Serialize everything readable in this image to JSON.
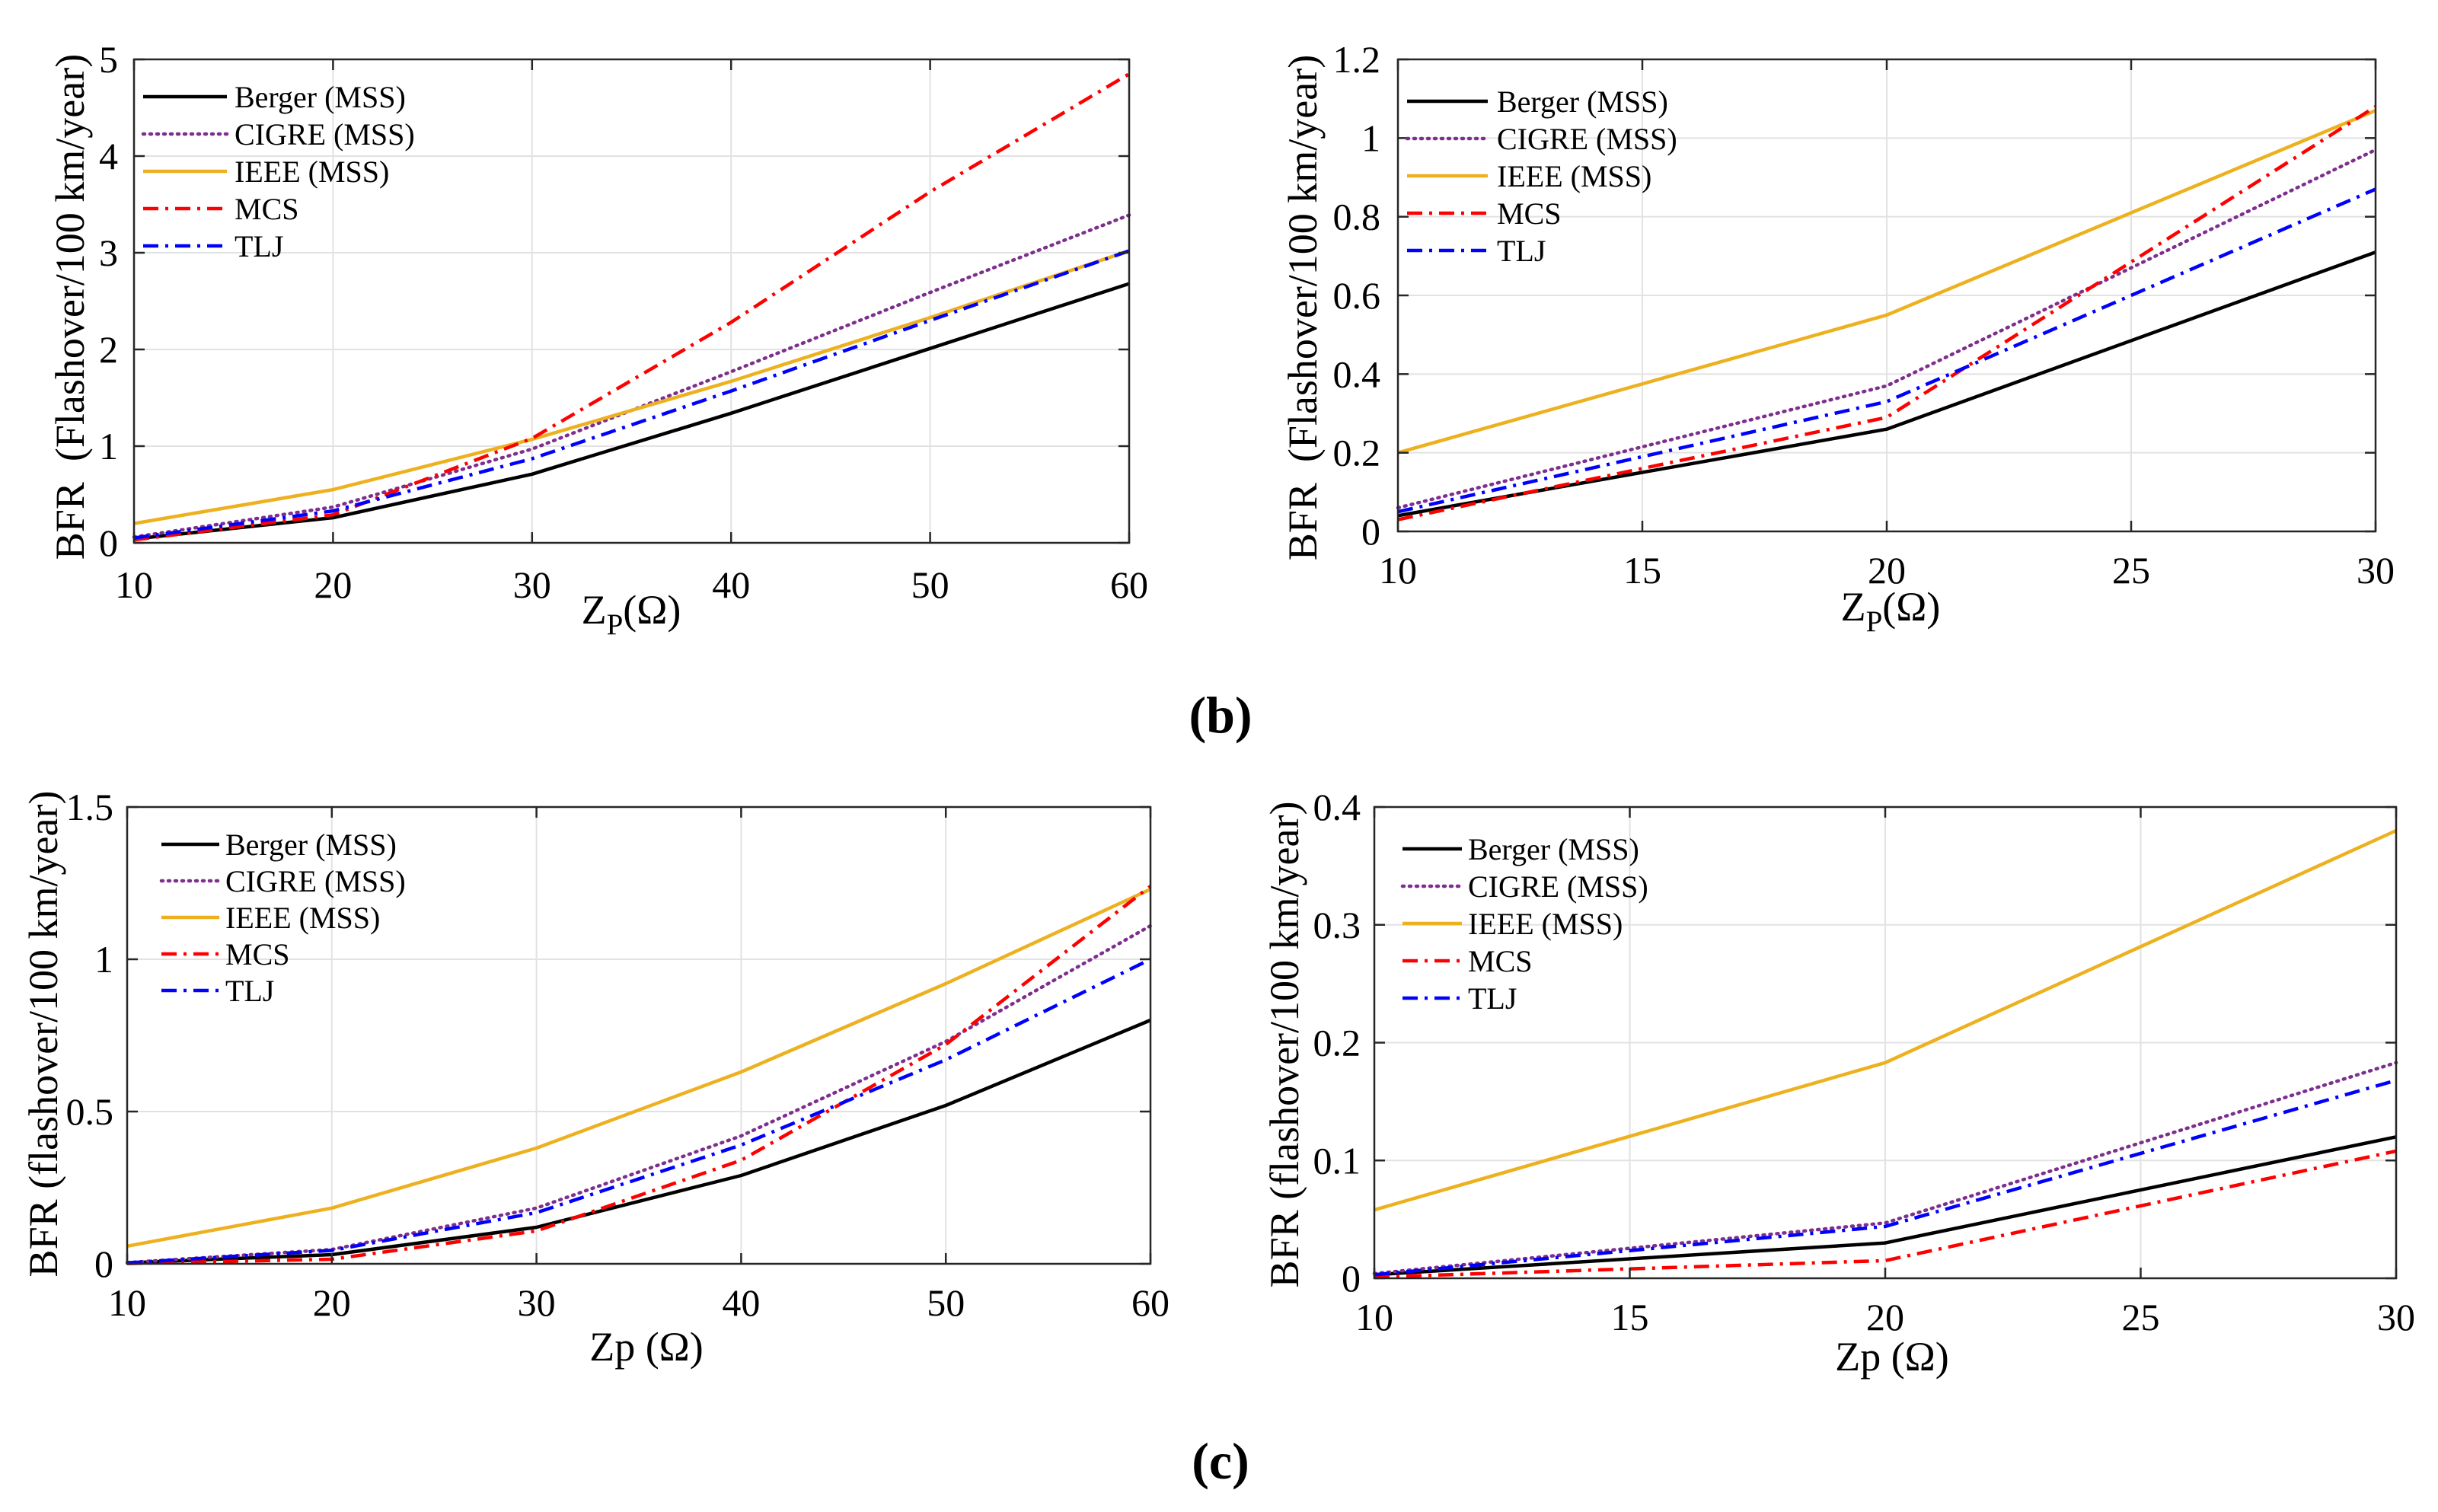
{
  "figure": {
    "label_b": "(b)",
    "label_c": "(c)"
  },
  "chart_data": [
    {
      "panel": "b-left",
      "type": "line",
      "title": "",
      "xlabel": {
        "main": "Z",
        "sub": "P",
        "rest": "(Ω)"
      },
      "ylabel": "BFR  (Flashover/100 km/year)",
      "xlim": [
        10,
        60
      ],
      "ylim": [
        0,
        5
      ],
      "x": [
        10,
        20,
        30,
        40,
        50,
        60
      ],
      "xticks": [
        10,
        20,
        30,
        40,
        50,
        60
      ],
      "xtick_labels": [
        "10",
        "20",
        "30",
        "40",
        "50",
        "60"
      ],
      "yticks": [
        0,
        1,
        2,
        3,
        4,
        5
      ],
      "ytick_labels": [
        "0",
        "1",
        "2",
        "3",
        "4",
        "5"
      ],
      "grid": true,
      "legend_position": "top-left",
      "series": [
        {
          "name": "Berger (MSS)",
          "color": "#000000",
          "style": "solid",
          "values": [
            0.04,
            0.26,
            0.71,
            1.34,
            2.01,
            2.68
          ]
        },
        {
          "name": "CIGRE (MSS)",
          "color": "#7E2F8E",
          "style": "dotted",
          "values": [
            0.06,
            0.37,
            0.97,
            1.77,
            2.59,
            3.39
          ]
        },
        {
          "name": "IEEE (MSS)",
          "color": "#EDB120",
          "style": "solid",
          "values": [
            0.2,
            0.55,
            1.07,
            1.67,
            2.33,
            3.02
          ]
        },
        {
          "name": "MCS",
          "color": "#FF0000",
          "style": "dash-dot",
          "values": [
            0.03,
            0.29,
            1.08,
            2.28,
            3.63,
            4.85
          ]
        },
        {
          "name": "TLJ",
          "color": "#0000FF",
          "style": "dash-dot",
          "values": [
            0.05,
            0.33,
            0.87,
            1.57,
            2.3,
            3.02
          ]
        }
      ]
    },
    {
      "panel": "b-right",
      "type": "line",
      "title": "",
      "xlabel": {
        "main": "Z",
        "sub": "P",
        "rest": "(Ω)"
      },
      "ylabel": "BFR  (Flashover/100 km/year)",
      "xlim": [
        10,
        30
      ],
      "ylim": [
        0,
        1.2
      ],
      "x": [
        10,
        20,
        30
      ],
      "xticks": [
        10,
        15,
        20,
        25,
        30
      ],
      "xtick_labels": [
        "10",
        "15",
        "20",
        "25",
        "30"
      ],
      "yticks": [
        0,
        0.2,
        0.4,
        0.6,
        0.8,
        1,
        1.2
      ],
      "ytick_labels": [
        "0",
        "0.2",
        "0.4",
        "0.6",
        "0.8",
        "1",
        "1.2"
      ],
      "grid": true,
      "legend_position": "top-left",
      "series": [
        {
          "name": "Berger (MSS)",
          "color": "#000000",
          "style": "solid",
          "values": [
            0.04,
            0.26,
            0.71
          ]
        },
        {
          "name": "CIGRE (MSS)",
          "color": "#7E2F8E",
          "style": "dotted",
          "values": [
            0.06,
            0.37,
            0.97
          ]
        },
        {
          "name": "IEEE (MSS)",
          "color": "#EDB120",
          "style": "solid",
          "values": [
            0.2,
            0.55,
            1.07
          ]
        },
        {
          "name": "MCS",
          "color": "#FF0000",
          "style": "dash-dot",
          "values": [
            0.03,
            0.29,
            1.08
          ]
        },
        {
          "name": "TLJ",
          "color": "#0000FF",
          "style": "dash-dot",
          "values": [
            0.05,
            0.33,
            0.87
          ]
        }
      ]
    },
    {
      "panel": "c-left",
      "type": "line",
      "title": "",
      "xlabel": "Zp (Ω)",
      "ylabel": "BFR (flashover/100 km/year)",
      "xlim": [
        10,
        60
      ],
      "ylim": [
        0,
        1.5
      ],
      "x": [
        10,
        20,
        30,
        40,
        50,
        60
      ],
      "xticks": [
        10,
        20,
        30,
        40,
        50,
        60
      ],
      "xtick_labels": [
        "10",
        "20",
        "30",
        "40",
        "50",
        "60"
      ],
      "yticks": [
        0,
        0.5,
        1,
        1.5
      ],
      "ytick_labels": [
        "0",
        "0.5",
        "1",
        "1.5"
      ],
      "grid": true,
      "legend_position": "top-left",
      "series": [
        {
          "name": "Berger (MSS)",
          "color": "#000000",
          "style": "solid",
          "values": [
            0.003,
            0.03,
            0.12,
            0.29,
            0.52,
            0.8
          ]
        },
        {
          "name": "CIGRE (MSS)",
          "color": "#7E2F8E",
          "style": "dotted",
          "values": [
            0.004,
            0.047,
            0.183,
            0.42,
            0.73,
            1.11
          ]
        },
        {
          "name": "IEEE (MSS)",
          "color": "#EDB120",
          "style": "solid",
          "values": [
            0.058,
            0.183,
            0.38,
            0.63,
            0.92,
            1.23
          ]
        },
        {
          "name": "MCS",
          "color": "#FF0000",
          "style": "dash-dot",
          "values": [
            0.001,
            0.015,
            0.108,
            0.34,
            0.72,
            1.24
          ]
        },
        {
          "name": "TLJ",
          "color": "#0000FF",
          "style": "dash-dot",
          "values": [
            0.003,
            0.044,
            0.168,
            0.39,
            0.67,
            1.0
          ]
        }
      ]
    },
    {
      "panel": "c-right",
      "type": "line",
      "title": "",
      "xlabel": "Zp (Ω)",
      "ylabel": "BFR (flashover/100 km/year)",
      "xlim": [
        10,
        30
      ],
      "ylim": [
        0,
        0.4
      ],
      "x": [
        10,
        20,
        30
      ],
      "xticks": [
        10,
        15,
        20,
        25,
        30
      ],
      "xtick_labels": [
        "10",
        "15",
        "20",
        "25",
        "30"
      ],
      "yticks": [
        0,
        0.1,
        0.2,
        0.3,
        0.4
      ],
      "ytick_labels": [
        "0",
        "0.1",
        "0.2",
        "0.3",
        "0.4"
      ],
      "grid": true,
      "legend_position": "top-left",
      "series": [
        {
          "name": "Berger (MSS)",
          "color": "#000000",
          "style": "solid",
          "values": [
            0.003,
            0.03,
            0.12
          ]
        },
        {
          "name": "CIGRE (MSS)",
          "color": "#7E2F8E",
          "style": "dotted",
          "values": [
            0.004,
            0.047,
            0.183
          ]
        },
        {
          "name": "IEEE (MSS)",
          "color": "#EDB120",
          "style": "solid",
          "values": [
            0.058,
            0.183,
            0.38
          ]
        },
        {
          "name": "MCS",
          "color": "#FF0000",
          "style": "dash-dot",
          "values": [
            0.001,
            0.015,
            0.108
          ]
        },
        {
          "name": "TLJ",
          "color": "#0000FF",
          "style": "dash-dot",
          "values": [
            0.003,
            0.044,
            0.168
          ]
        }
      ]
    }
  ]
}
